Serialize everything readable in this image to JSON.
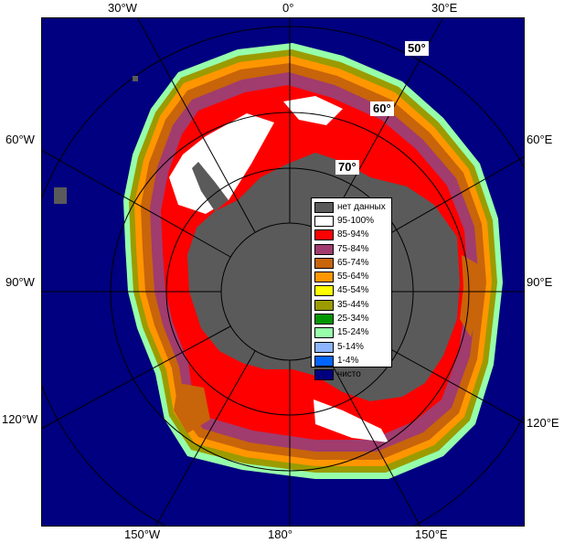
{
  "lon_labels": {
    "top": [
      "30°W",
      "0°",
      "30°E"
    ],
    "left": [
      "60°W",
      "90°W",
      "120°W"
    ],
    "right": [
      "60°E",
      "90°E",
      "120°E"
    ],
    "bottom": [
      "150°W",
      "180°",
      "150°E"
    ]
  },
  "lat_labels": [
    "50°",
    "60°",
    "70°"
  ],
  "legend": [
    {
      "label": "нет данных",
      "color": "#5a5a5a"
    },
    {
      "label": "95-100%",
      "color": "#ffffff"
    },
    {
      "label": "85-94%",
      "color": "#ff0000"
    },
    {
      "label": "75-84%",
      "color": "#a03c6e"
    },
    {
      "label": "65-74%",
      "color": "#c8640a"
    },
    {
      "label": "55-64%",
      "color": "#ff9600"
    },
    {
      "label": "45-54%",
      "color": "#ffff00"
    },
    {
      "label": "35-44%",
      "color": "#9b9b00"
    },
    {
      "label": "25-34%",
      "color": "#009600"
    },
    {
      "label": "15-24%",
      "color": "#96ffaa"
    },
    {
      "label": "5-14%",
      "color": "#8cb4ff"
    },
    {
      "label": "1-4%",
      "color": "#0064ff"
    },
    {
      "label": "чисто",
      "color": "#000080"
    }
  ],
  "colors": {
    "ocean": "#000080",
    "land": "#5a5a5a",
    "grid": "#000000"
  }
}
